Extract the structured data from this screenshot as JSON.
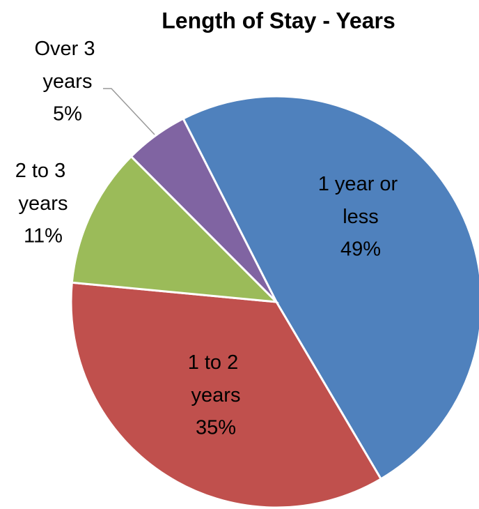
{
  "chart_data": {
    "type": "pie",
    "title": "Length of Stay - Years",
    "categories": [
      "1 year or less",
      "1 to 2 years",
      "2 to 3 years",
      "Over 3 years"
    ],
    "values": [
      49,
      35,
      11,
      5
    ],
    "value_labels": [
      "49%",
      "35%",
      "11%",
      "5%"
    ],
    "colors": [
      "#4f81bd",
      "#c0504d",
      "#9bbb59",
      "#8064a2"
    ]
  }
}
